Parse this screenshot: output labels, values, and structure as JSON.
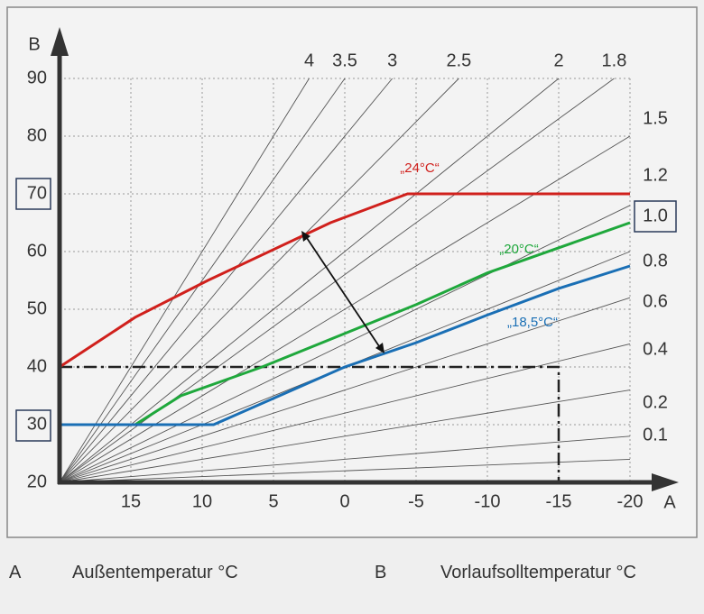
{
  "chart_data": {
    "type": "line",
    "xlabel": "A",
    "ylabel": "B",
    "xlim": [
      20,
      -20
    ],
    "ylim": [
      20,
      90
    ],
    "xticks": [
      15,
      10,
      5,
      0,
      -5,
      -10,
      -15,
      -20
    ],
    "yticks": [
      20,
      30,
      40,
      50,
      60,
      70,
      80,
      90
    ],
    "grid": true,
    "slopes": [
      4,
      3.5,
      3,
      2.5,
      2,
      1.8,
      1.5,
      1.2,
      {
        "value": 1,
        "label": "1.0"
      },
      0.8,
      0.6,
      0.4,
      0.2,
      0.1
    ],
    "series": [
      {
        "name": "„24°C“",
        "color": "#d0201c",
        "x": [
          20,
          14.7,
          9.6,
          1,
          -4.4,
          -20
        ],
        "values": [
          40,
          48.6,
          55,
          65,
          70,
          70
        ]
      },
      {
        "name": "„20°C“",
        "color": "#1fa83c",
        "x": [
          20,
          14.7,
          11.5,
          5.8,
          0,
          -5,
          -10,
          -20
        ],
        "values": [
          30,
          30,
          35,
          40,
          45.8,
          50.8,
          56.3,
          65
        ]
      },
      {
        "name": "„18,5°C“",
        "color": "#1a6fb5",
        "x": [
          20,
          9.2,
          3.3,
          0,
          -5,
          -10,
          -15,
          -20
        ],
        "values": [
          30,
          30,
          36.4,
          40,
          44.2,
          49,
          53.6,
          57.5
        ]
      }
    ],
    "reference": {
      "x": -15,
      "y": 40
    }
  },
  "legend": [
    {
      "key": "A",
      "text": "Außentemperatur °C"
    },
    {
      "key": "B",
      "text": "Vorlaufsolltemperatur °C"
    }
  ]
}
